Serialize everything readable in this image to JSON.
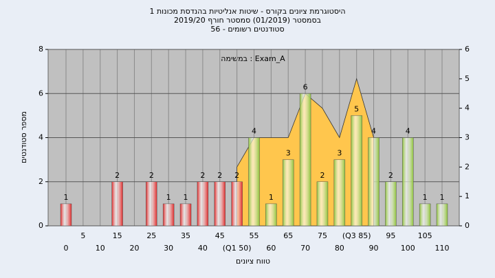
{
  "chart_data": {
    "type": "bar",
    "title_lines": [
      "היסטוגרמת ציונים בקורס - שיטות אנליטיות בהנדסת מכונות 1",
      "בסמסטר (01/2019) סמסטר חורף 2019/20",
      "סטודנטים רשומים - 56"
    ],
    "annotation": "במשימה : Exam_A",
    "x_label": "טווח ציונים",
    "y_label": "מספר סטודנטים",
    "categories": [
      "0",
      "5",
      "10",
      "15",
      "20",
      "25",
      "30",
      "35",
      "40",
      "45",
      "(Q1 50)",
      "55",
      "60",
      "65",
      "70",
      "75",
      "80",
      "(Q3 85)",
      "90",
      "95",
      "100",
      "105",
      "110"
    ],
    "values": [
      1,
      0,
      0,
      2,
      0,
      2,
      1,
      1,
      2,
      2,
      2,
      4,
      1,
      3,
      6,
      2,
      3,
      5,
      4,
      2,
      4,
      1,
      1
    ],
    "colors": [
      "#e02828",
      "#e02828",
      "#e02828",
      "#e02828",
      "#e02828",
      "#e02828",
      "#e02828",
      "#e02828",
      "#e02828",
      "#e02828",
      "#e02828",
      "#8fc33a",
      "#8fc33a",
      "#8fc33a",
      "#8fc33a",
      "#8fc33a",
      "#8fc33a",
      "#8fc33a",
      "#8fc33a",
      "#8fc33a",
      "#8fc33a",
      "#8fc33a",
      "#8fc33a"
    ],
    "area": {
      "axis": "y2",
      "color": "#ffc64d",
      "values": [
        null,
        null,
        null,
        null,
        null,
        null,
        null,
        null,
        null,
        null,
        2,
        3,
        3,
        3,
        4.5,
        4,
        3,
        5,
        3,
        null,
        null,
        null,
        null
      ]
    },
    "ylim": [
      0,
      8
    ],
    "yticks": [
      0,
      2,
      4,
      6,
      8
    ],
    "y2lim": [
      0,
      6
    ],
    "y2ticks": [
      0,
      1,
      2,
      3,
      4,
      5,
      6
    ],
    "grid": true
  }
}
